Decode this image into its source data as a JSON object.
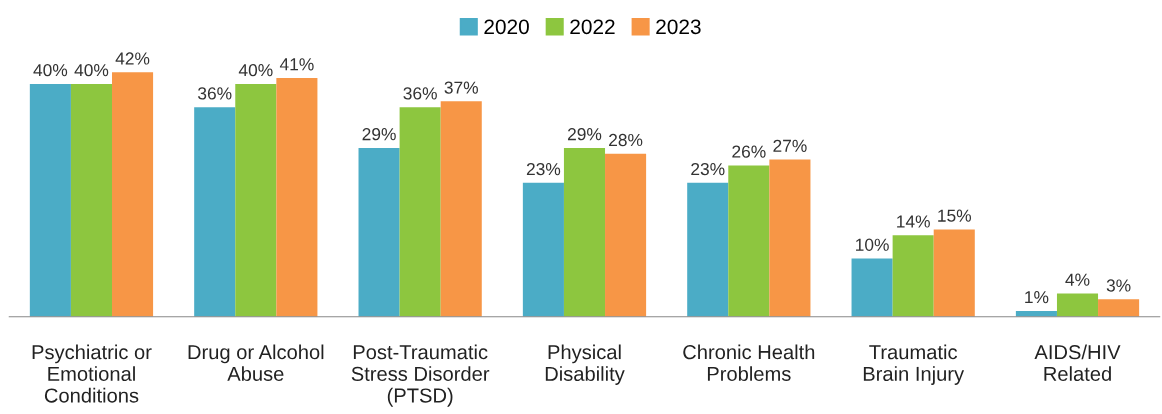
{
  "chart_data": {
    "type": "bar",
    "categories": [
      "Psychiatric or\nEmotional\nConditions",
      "Drug or Alcohol\nAbuse",
      "Post-Traumatic\nStress Disorder\n(PTSD)",
      "Physical\nDisability",
      "Chronic Health\nProblems",
      "Traumatic\nBrain Injury",
      "AIDS/HIV\nRelated"
    ],
    "series": [
      {
        "name": "2020",
        "color": "#4bacc6",
        "values": [
          40,
          36,
          29,
          23,
          23,
          10,
          1
        ],
        "value_labels": [
          "40%",
          "36%",
          "29%",
          "23%",
          "23%",
          "10%",
          "1%"
        ]
      },
      {
        "name": "2022",
        "color": "#8dc63f",
        "values": [
          40,
          40,
          36,
          29,
          26,
          14,
          4
        ],
        "value_labels": [
          "40%",
          "40%",
          "36%",
          "29%",
          "26%",
          "14%",
          "4%"
        ]
      },
      {
        "name": "2023",
        "color": "#f79646",
        "values": [
          42,
          41,
          37,
          28,
          27,
          15,
          3
        ],
        "value_labels": [
          "42%",
          "41%",
          "37%",
          "28%",
          "27%",
          "15%",
          "3%"
        ]
      }
    ],
    "legend": "top",
    "grid": false
  }
}
